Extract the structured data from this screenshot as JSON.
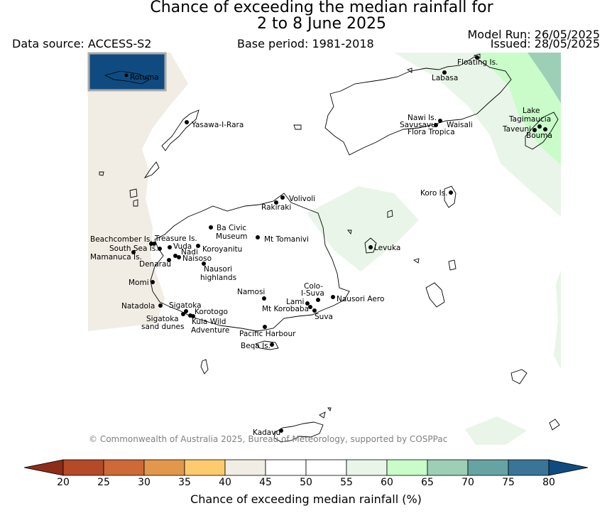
{
  "title_line1": "Chance of exceeding the median rainfall for",
  "title_line2": "2 to 8 June 2025",
  "data_source": "Data source: ACCESS-S2",
  "base_period": "Base period: 1981-2018",
  "model_run": "Model Run: 26/05/2025",
  "issued": "Issued: 28/05/2025",
  "inset_label": "Rotuma",
  "copyright": "© Commonwealth of Australia 2025, Bureau of Meteorology, supported by COSPPac",
  "colorbar": {
    "label": "Chance of exceeding median rainfall (%)",
    "ticks": [
      "20",
      "25",
      "30",
      "35",
      "40",
      "45",
      "50",
      "55",
      "60",
      "65",
      "70",
      "75",
      "80"
    ],
    "bins": [
      {
        "range": "<20",
        "color": "#8c2d19"
      },
      {
        "range": "20-25",
        "color": "#b44a28"
      },
      {
        "range": "25-30",
        "color": "#cd6a38"
      },
      {
        "range": "30-35",
        "color": "#e3974b"
      },
      {
        "range": "35-40",
        "color": "#fdcb6e"
      },
      {
        "range": "40-45",
        "color": "#f1ece4"
      },
      {
        "range": "45-50",
        "color": "#ffffff"
      },
      {
        "range": "50-55",
        "color": "#ffffff"
      },
      {
        "range": "55-60",
        "color": "#e9f5e8"
      },
      {
        "range": "60-65",
        "color": "#c9fcc9"
      },
      {
        "range": "65-70",
        "color": "#9ccfb6"
      },
      {
        "range": "70-75",
        "color": "#66a4a4"
      },
      {
        "range": "75-80",
        "color": "#3a7597"
      },
      {
        "range": ">80",
        "color": "#0f4b80"
      }
    ]
  },
  "places": [
    {
      "name": "Floating Is."
    },
    {
      "name": "Labasa"
    },
    {
      "name": "Yasawa-I-Rara"
    },
    {
      "name": "Nawi Is."
    },
    {
      "name": "Savusavu"
    },
    {
      "name": "Waisali"
    },
    {
      "name": "Flora Tropica"
    },
    {
      "name": "Lake"
    },
    {
      "name": "Tagimaucia"
    },
    {
      "name": "Taveuni"
    },
    {
      "name": "Bouma"
    },
    {
      "name": "Koro Is."
    },
    {
      "name": "Volivoli"
    },
    {
      "name": "Rakiraki"
    },
    {
      "name": "Beachcomber Is."
    },
    {
      "name": "Treasure Is."
    },
    {
      "name": "South Sea Is."
    },
    {
      "name": "Vuda"
    },
    {
      "name": "Mamanuca Is."
    },
    {
      "name": "Nadi"
    },
    {
      "name": "Denarau"
    },
    {
      "name": "Naisoso"
    },
    {
      "name": "Ba Civic"
    },
    {
      "name": "Museum"
    },
    {
      "name": "Koroyanitu"
    },
    {
      "name": "Mt Tomanivi"
    },
    {
      "name": "Levuka"
    },
    {
      "name": "Nausori"
    },
    {
      "name": "highlands"
    },
    {
      "name": "Momi"
    },
    {
      "name": "Namosi"
    },
    {
      "name": "Colo-"
    },
    {
      "name": "I-Suva"
    },
    {
      "name": "Nausori Aero"
    },
    {
      "name": "Lami"
    },
    {
      "name": "Mt Korobaba"
    },
    {
      "name": "Suva"
    },
    {
      "name": "Natadola"
    },
    {
      "name": "Sigatoka"
    },
    {
      "name": "Korotogo"
    },
    {
      "name": "Sigatoka"
    },
    {
      "name": "sand dunes"
    },
    {
      "name": "Kula Wild"
    },
    {
      "name": "Adventure"
    },
    {
      "name": "Pacific Harbour"
    },
    {
      "name": "Beqa Is."
    },
    {
      "name": "Kadavu"
    }
  ]
}
